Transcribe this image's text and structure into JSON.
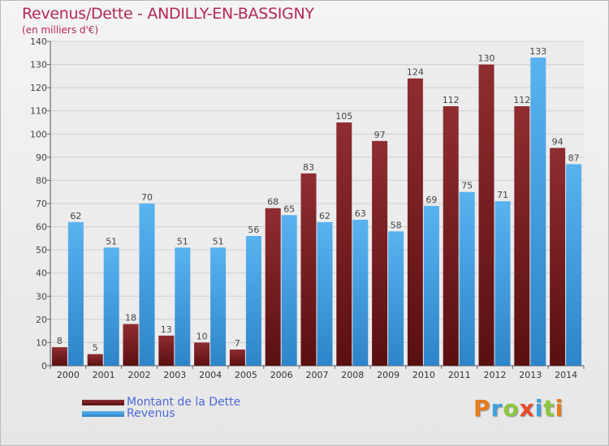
{
  "chart_data": {
    "type": "bar",
    "title": "Revenus/Dette - ANDILLY-EN-BASSIGNY",
    "subtitle": "(en milliers d'€)",
    "categories": [
      "2000",
      "2001",
      "2002",
      "2003",
      "2004",
      "2005",
      "2006",
      "2007",
      "2008",
      "2009",
      "2010",
      "2011",
      "2012",
      "2013",
      "2014"
    ],
    "series": [
      {
        "name": "Montant de la Dette",
        "values": [
          8,
          5,
          18,
          13,
          10,
          7,
          68,
          83,
          105,
          97,
          124,
          112,
          130,
          112,
          94
        ],
        "color": "#8b2a2c"
      },
      {
        "name": "Revenus",
        "values": [
          62,
          51,
          70,
          51,
          51,
          56,
          65,
          62,
          63,
          58,
          69,
          75,
          71,
          133,
          87
        ],
        "color": "#4aa3e6"
      }
    ],
    "ylim": [
      0,
      140
    ],
    "yticks": [
      0,
      10,
      20,
      30,
      40,
      50,
      60,
      70,
      80,
      90,
      100,
      110,
      120,
      130,
      140
    ],
    "grid": true,
    "legend_position": "bottom-left"
  },
  "logo": {
    "letters": [
      {
        "char": "P",
        "color": "#e87b1e"
      },
      {
        "char": "r",
        "color": "#3da0dc"
      },
      {
        "char": "o",
        "color": "#8cc63f"
      },
      {
        "char": "x",
        "color": "#e84a2a"
      },
      {
        "char": "i",
        "color": "#3da0dc"
      },
      {
        "char": "t",
        "color": "#8cc63f"
      },
      {
        "char": "i",
        "color": "#e87b1e"
      }
    ]
  }
}
